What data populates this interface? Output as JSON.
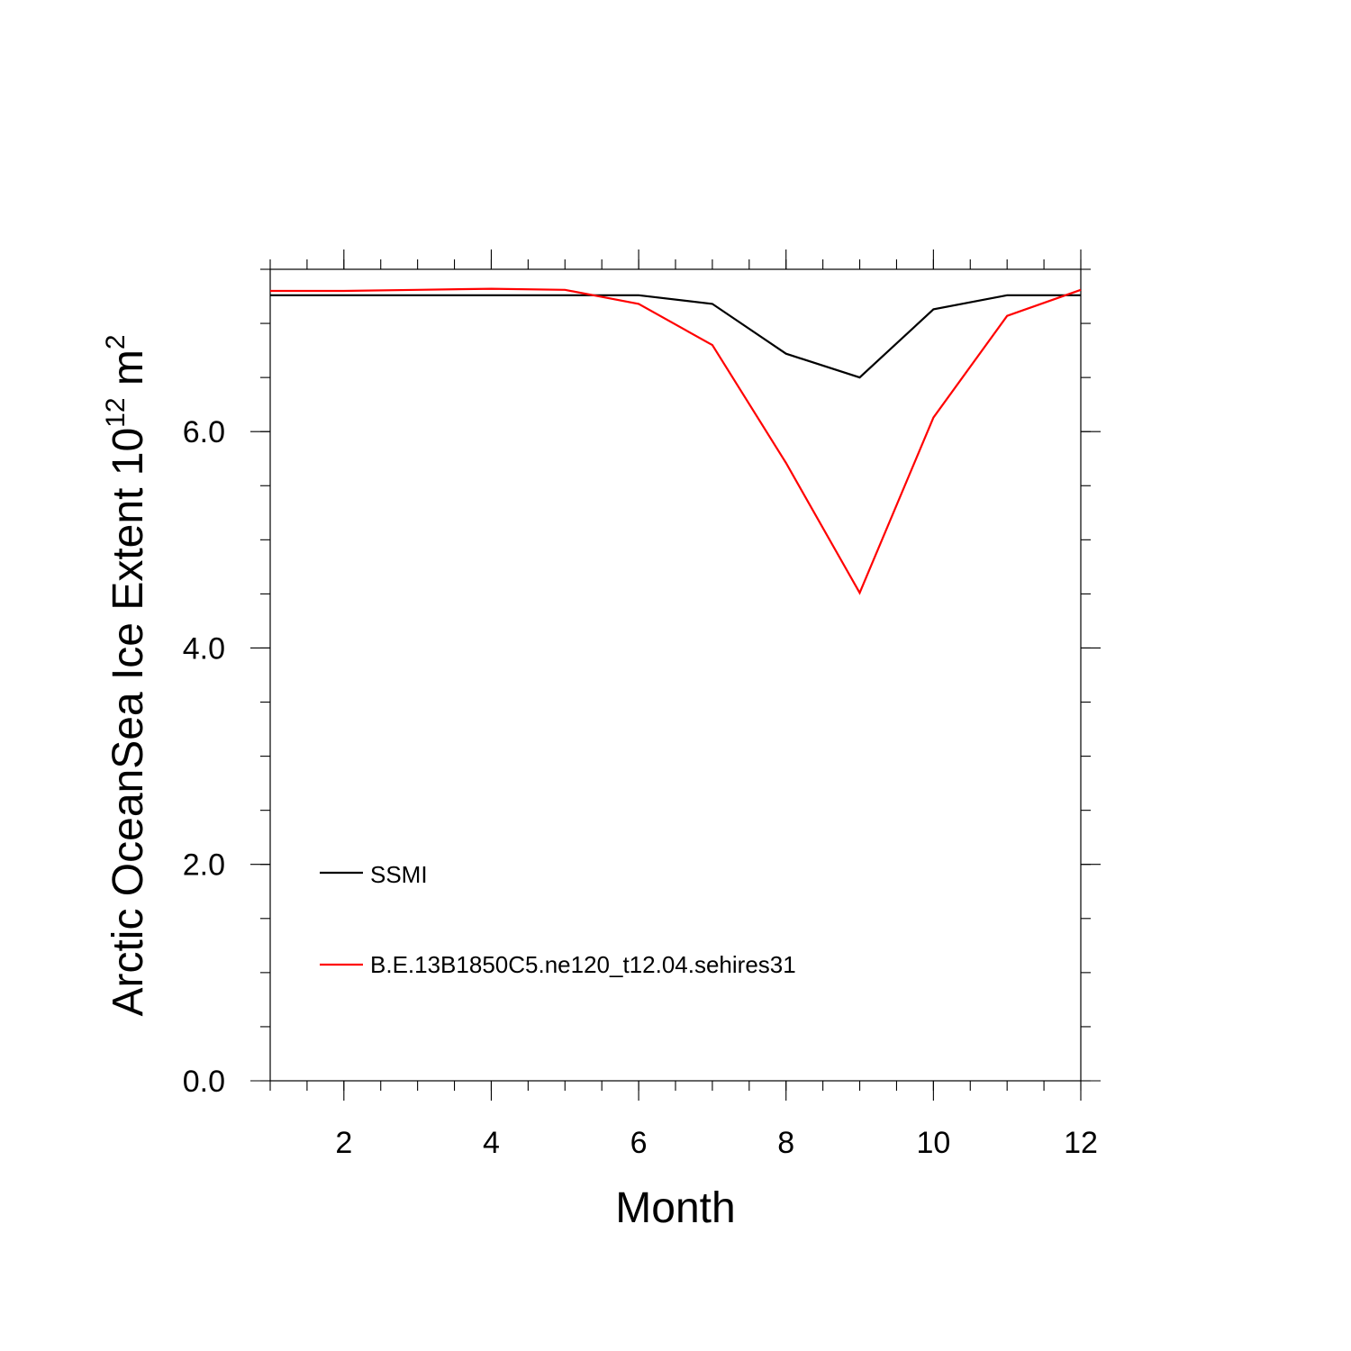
{
  "chart_data": {
    "type": "line",
    "xlabel": "Month",
    "ylabel_main": "Arctic OceanSea Ice Extent 10",
    "ylabel_exp": "12",
    "ylabel_unit": "m",
    "ylabel_unit_exp": "2",
    "xlim": [
      1,
      12
    ],
    "ylim": [
      0,
      7.5
    ],
    "xticks": [
      2,
      4,
      6,
      8,
      10,
      12
    ],
    "xtick_labels": [
      "2",
      "4",
      "6",
      "8",
      "10",
      "12"
    ],
    "yticks": [
      0,
      2,
      4,
      6
    ],
    "ytick_labels": [
      "0.0",
      "2.0",
      "4.0",
      "6.0"
    ],
    "x": [
      1,
      2,
      3,
      4,
      5,
      6,
      7,
      8,
      9,
      10,
      11,
      12
    ],
    "series": [
      {
        "name": "SSMI",
        "color": "#000000",
        "values": [
          7.26,
          7.26,
          7.26,
          7.26,
          7.26,
          7.26,
          7.18,
          6.72,
          6.5,
          7.13,
          7.26,
          7.26
        ]
      },
      {
        "name": "B.E.13B1850C5.ne120_t12.04.sehires31",
        "color": "#ff0000",
        "values": [
          7.3,
          7.3,
          7.31,
          7.32,
          7.31,
          7.18,
          6.8,
          5.71,
          4.51,
          6.13,
          7.07,
          7.31
        ]
      }
    ],
    "grid": false,
    "legend_position": "bottom-left"
  }
}
